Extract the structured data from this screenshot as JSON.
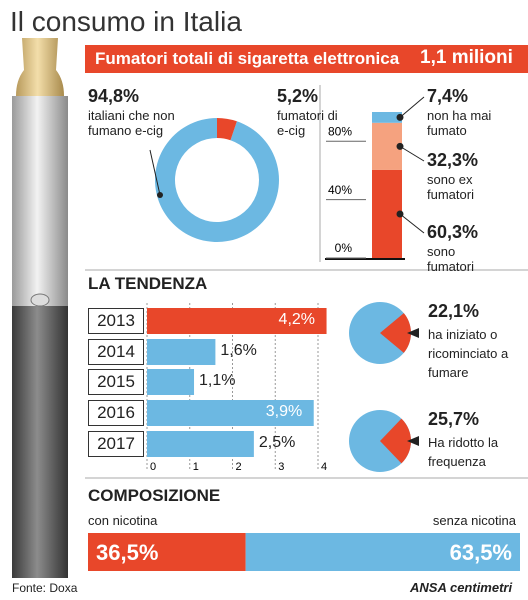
{
  "title": "Il consumo in Italia",
  "banner": {
    "label": "Fumatori totali di sigaretta elettronica",
    "value": "1,1 milioni"
  },
  "source": "Fonte: Doxa",
  "credit": "ANSA centimetri",
  "chart_data": [
    {
      "type": "donut",
      "categories": [
        "italiani che non fumano e-cig",
        "fumatori di e-cig"
      ],
      "values": [
        94.8,
        5.2
      ],
      "value_labels": [
        "94,8%",
        "5,2%"
      ],
      "colors": [
        "#6cb8e2",
        "#e8472a"
      ]
    },
    {
      "type": "stacked-bar",
      "categories": [
        "sono fumatori",
        "sono ex fumatori",
        "non ha mai fumato"
      ],
      "values": [
        60.3,
        32.3,
        7.4
      ],
      "value_labels": [
        "60,3%",
        "32,3%",
        "7,4%"
      ],
      "colors": [
        "#e8472a",
        "#f5a27f",
        "#6cb8e2"
      ],
      "ylim": [
        0,
        100
      ],
      "yticks": [
        {
          "value": 0,
          "label": "0%"
        },
        {
          "value": 40,
          "label": "40%"
        },
        {
          "value": 80,
          "label": "80%"
        }
      ]
    },
    {
      "type": "hbar",
      "title": "LA TENDENZA",
      "categories": [
        "2013",
        "2014",
        "2015",
        "2016",
        "2017"
      ],
      "values": [
        4.2,
        1.6,
        1.1,
        3.9,
        2.5
      ],
      "value_labels": [
        "4,2%",
        "1,6%",
        "1,1%",
        "3,9%",
        "2,5%"
      ],
      "colors": [
        "#e8472a",
        "#6cb8e2",
        "#6cb8e2",
        "#6cb8e2",
        "#6cb8e2"
      ],
      "xlim": [
        0,
        4
      ],
      "xticks": [
        0,
        1,
        2,
        3,
        4
      ]
    },
    {
      "type": "pie",
      "categories": [
        "ha iniziato o ricominciato a fumare"
      ],
      "values": [
        22.1
      ],
      "value_labels": [
        "22,1%"
      ],
      "color": "#e8472a",
      "rest_color": "#6cb8e2"
    },
    {
      "type": "pie",
      "categories": [
        "Ha ridotto la frequenza"
      ],
      "values": [
        25.7
      ],
      "value_labels": [
        "25,7%"
      ],
      "color": "#e8472a",
      "rest_color": "#6cb8e2"
    },
    {
      "type": "split-bar",
      "title": "COMPOSIZIONE",
      "categories": [
        "con nicotina",
        "senza nicotina"
      ],
      "values": [
        36.5,
        63.5
      ],
      "value_labels": [
        "36,5%",
        "63,5%"
      ],
      "colors": [
        "#e8472a",
        "#6cb8e2"
      ]
    }
  ]
}
